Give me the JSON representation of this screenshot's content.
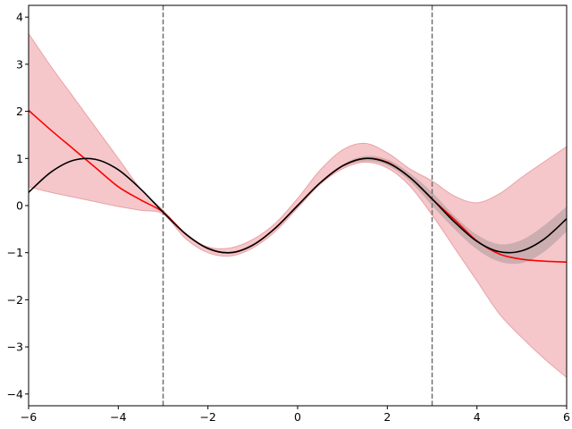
{
  "chart_data": {
    "type": "line",
    "title": "",
    "xlabel": "",
    "ylabel": "",
    "xlim": [
      -6,
      6
    ],
    "ylim": [
      -4.25,
      4.25
    ],
    "x_ticks": [
      -6,
      -4,
      -2,
      0,
      2,
      4,
      6
    ],
    "y_ticks": [
      -4,
      -3,
      -2,
      -1,
      0,
      1,
      2,
      3,
      4
    ],
    "x_tick_labels": [
      "−6",
      "−4",
      "−2",
      "0",
      "2",
      "4",
      "6"
    ],
    "y_tick_labels": [
      "−4",
      "−3",
      "−2",
      "−1",
      "0",
      "1",
      "2",
      "3",
      "4"
    ],
    "grid": false,
    "legend": "none",
    "vlines": [
      {
        "x": -3,
        "style": "dashed",
        "color": "#707070"
      },
      {
        "x": 3,
        "style": "dashed",
        "color": "#707070"
      }
    ],
    "series": [
      {
        "kind": "band",
        "color": "#e8828a",
        "opacity": 0.45,
        "edge_color": "#e9a2a6",
        "x": [
          -6,
          -5.5,
          -5,
          -4.5,
          -4,
          -3.5,
          -3,
          -2.5,
          -2,
          -1.5,
          -1,
          -0.5,
          0,
          0.5,
          1,
          1.5,
          2,
          2.5,
          3,
          3.5,
          4,
          4.5,
          5,
          5.5,
          6
        ],
        "lower": [
          0.4,
          0.28,
          0.18,
          0.08,
          -0.02,
          -0.1,
          -0.18,
          -0.7,
          -1.0,
          -1.07,
          -0.9,
          -0.55,
          -0.05,
          0.45,
          0.78,
          0.92,
          0.8,
          0.42,
          -0.2,
          -0.9,
          -1.6,
          -2.3,
          -2.8,
          -3.25,
          -3.65
        ],
        "upper": [
          3.65,
          2.95,
          2.3,
          1.65,
          1.0,
          0.35,
          -0.1,
          -0.62,
          -0.88,
          -0.9,
          -0.72,
          -0.38,
          0.15,
          0.75,
          1.18,
          1.32,
          1.12,
          0.78,
          0.52,
          0.2,
          0.06,
          0.25,
          0.6,
          0.93,
          1.25
        ]
      },
      {
        "kind": "band",
        "color": "#808080",
        "opacity": 0.35,
        "x": [
          -3,
          -2.5,
          -2,
          -1.5,
          -1,
          -0.5,
          0,
          0.5,
          1,
          1.5,
          2,
          2.5,
          3,
          3.5,
          4,
          4.5,
          5,
          5.5,
          6
        ],
        "lower": [
          -0.16,
          -0.62,
          -0.92,
          -1.01,
          -0.85,
          -0.5,
          -0.02,
          0.47,
          0.82,
          0.94,
          0.85,
          0.52,
          0.0,
          -0.5,
          -0.93,
          -1.19,
          -1.22,
          -0.98,
          -0.55
        ],
        "upper": [
          -0.12,
          -0.58,
          -0.88,
          -0.98,
          -0.81,
          -0.46,
          0.02,
          0.5,
          0.87,
          1.05,
          0.98,
          0.69,
          0.28,
          -0.22,
          -0.62,
          -0.82,
          -0.73,
          -0.42,
          -0.02
        ]
      },
      {
        "kind": "line",
        "color": "#ff0000",
        "x": [
          -6,
          -5.5,
          -5,
          -4.5,
          -4,
          -3.5,
          -3,
          -2.5,
          -2,
          -1.5,
          -1,
          -0.5,
          0,
          0.5,
          1,
          1.5,
          2,
          2.5,
          3,
          3.5,
          4,
          4.5,
          5,
          5.5,
          6
        ],
        "y": [
          2.02,
          1.6,
          1.2,
          0.8,
          0.4,
          0.12,
          -0.14,
          -0.6,
          -0.91,
          -1.0,
          -0.84,
          -0.48,
          0.0,
          0.48,
          0.84,
          1.0,
          0.92,
          0.6,
          0.14,
          -0.3,
          -0.75,
          -1.03,
          -1.14,
          -1.18,
          -1.2
        ]
      },
      {
        "kind": "line",
        "color": "#000000",
        "x": [
          -6,
          -5.5,
          -5,
          -4.5,
          -4,
          -3.5,
          -3,
          -2.5,
          -2,
          -1.5,
          -1,
          -0.5,
          0,
          0.5,
          1,
          1.5,
          2,
          2.5,
          3,
          3.5,
          4,
          4.5,
          5,
          5.5,
          6
        ],
        "y": [
          0.28,
          0.71,
          0.96,
          0.98,
          0.76,
          0.35,
          -0.14,
          -0.6,
          -0.91,
          -1.0,
          -0.84,
          -0.48,
          0.0,
          0.48,
          0.84,
          1.0,
          0.91,
          0.6,
          0.14,
          -0.35,
          -0.76,
          -0.98,
          -0.96,
          -0.71,
          -0.28
        ]
      }
    ]
  }
}
